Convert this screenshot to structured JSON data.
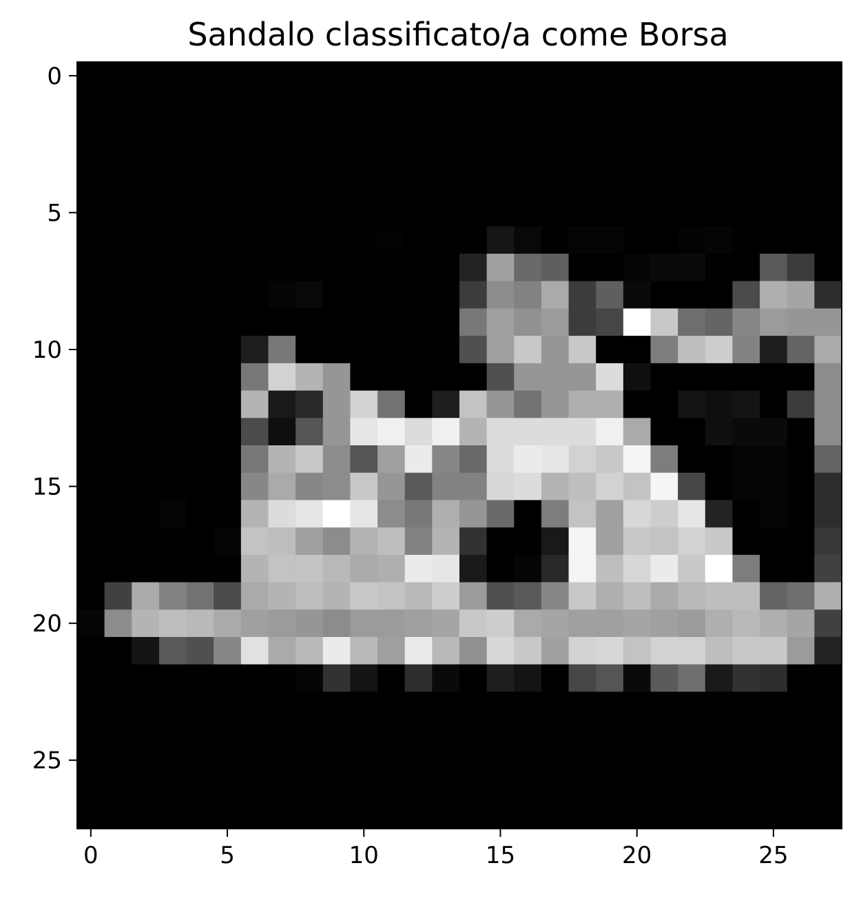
{
  "chart_data": {
    "type": "heatmap",
    "title": "Sandalo classificato/a come Borsa",
    "xlabel": "",
    "ylabel": "",
    "colormap": "gray",
    "x_ticks": [
      "0",
      "5",
      "10",
      "15",
      "20",
      "25"
    ],
    "y_ticks": [
      "0",
      "5",
      "10",
      "15",
      "20",
      "25"
    ],
    "xlim": [
      -0.5,
      27.5
    ],
    "ylim": [
      27.5,
      -0.5
    ],
    "grid": false,
    "rows": [
      [
        0,
        0,
        0,
        0,
        0,
        0,
        0,
        0,
        0,
        0,
        0,
        0,
        0,
        0,
        0,
        0,
        0,
        0,
        0,
        0,
        0,
        0,
        0,
        0,
        0,
        0,
        0,
        0
      ],
      [
        0,
        0,
        0,
        0,
        0,
        0,
        0,
        0,
        0,
        0,
        0,
        0,
        0,
        0,
        0,
        0,
        0,
        0,
        0,
        0,
        0,
        0,
        0,
        0,
        0,
        0,
        0,
        0
      ],
      [
        0,
        0,
        0,
        0,
        0,
        0,
        0,
        0,
        0,
        0,
        0,
        0,
        0,
        0,
        0,
        0,
        0,
        0,
        0,
        0,
        0,
        0,
        0,
        0,
        0,
        0,
        0,
        0
      ],
      [
        0,
        0,
        0,
        0,
        0,
        0,
        0,
        0,
        0,
        0,
        0,
        0,
        0,
        0,
        0,
        0,
        0,
        0,
        0,
        0,
        0,
        0,
        0,
        0,
        0,
        0,
        0,
        0
      ],
      [
        0,
        0,
        0,
        0,
        0,
        0,
        0,
        0,
        0,
        0,
        0,
        0,
        0,
        0,
        0,
        0,
        0,
        0,
        0,
        0,
        0,
        0,
        0,
        0,
        0,
        0,
        0,
        0
      ],
      [
        0,
        0,
        0,
        0,
        0,
        0,
        0,
        0,
        0,
        0,
        0,
        0,
        0,
        0,
        0,
        0,
        0,
        0,
        0,
        0,
        0,
        0,
        0,
        0,
        0,
        0,
        0,
        0
      ],
      [
        0,
        0,
        0,
        0,
        0,
        0,
        0,
        0,
        0,
        0,
        0,
        2,
        0,
        0,
        0,
        22,
        8,
        0,
        5,
        5,
        0,
        0,
        3,
        5,
        0,
        0,
        0,
        0
      ],
      [
        0,
        0,
        0,
        0,
        0,
        0,
        0,
        0,
        0,
        0,
        0,
        0,
        0,
        0,
        35,
        160,
        105,
        95,
        0,
        0,
        5,
        10,
        10,
        0,
        0,
        90,
        60,
        0
      ],
      [
        0,
        0,
        0,
        0,
        0,
        0,
        0,
        5,
        8,
        0,
        0,
        0,
        0,
        0,
        60,
        140,
        130,
        170,
        60,
        95,
        10,
        0,
        0,
        0,
        75,
        175,
        165,
        45
      ],
      [
        0,
        0,
        0,
        0,
        0,
        0,
        0,
        0,
        0,
        0,
        0,
        0,
        0,
        0,
        120,
        160,
        145,
        155,
        60,
        70,
        255,
        200,
        110,
        100,
        135,
        155,
        150,
        150
      ],
      [
        0,
        0,
        0,
        0,
        0,
        0,
        30,
        120,
        0,
        0,
        0,
        0,
        0,
        0,
        80,
        160,
        200,
        150,
        200,
        0,
        0,
        125,
        190,
        205,
        130,
        30,
        100,
        170
      ],
      [
        0,
        0,
        0,
        0,
        0,
        0,
        120,
        210,
        180,
        150,
        0,
        0,
        0,
        0,
        0,
        80,
        150,
        150,
        150,
        220,
        15,
        0,
        0,
        0,
        0,
        0,
        0,
        140
      ],
      [
        0,
        0,
        0,
        0,
        0,
        0,
        180,
        25,
        40,
        150,
        210,
        115,
        0,
        30,
        195,
        150,
        115,
        150,
        175,
        175,
        0,
        0,
        20,
        15,
        20,
        0,
        60,
        140
      ],
      [
        0,
        0,
        0,
        0,
        0,
        0,
        75,
        15,
        85,
        150,
        230,
        240,
        220,
        240,
        180,
        220,
        220,
        220,
        220,
        240,
        170,
        0,
        0,
        15,
        10,
        10,
        0,
        140
      ],
      [
        0,
        0,
        0,
        0,
        0,
        0,
        120,
        180,
        200,
        140,
        85,
        160,
        235,
        135,
        105,
        220,
        235,
        230,
        210,
        200,
        245,
        125,
        0,
        0,
        5,
        5,
        0,
        100
      ],
      [
        0,
        0,
        0,
        0,
        0,
        0,
        135,
        170,
        135,
        140,
        200,
        150,
        90,
        130,
        130,
        215,
        220,
        180,
        190,
        210,
        195,
        245,
        70,
        0,
        5,
        5,
        0,
        45
      ],
      [
        0,
        0,
        0,
        5,
        0,
        0,
        180,
        220,
        230,
        255,
        230,
        140,
        120,
        175,
        150,
        105,
        0,
        125,
        195,
        160,
        215,
        205,
        230,
        35,
        0,
        5,
        0,
        45
      ],
      [
        0,
        0,
        0,
        0,
        0,
        5,
        195,
        190,
        160,
        140,
        180,
        190,
        130,
        180,
        50,
        0,
        0,
        25,
        245,
        160,
        200,
        195,
        210,
        200,
        0,
        0,
        0,
        55
      ],
      [
        0,
        0,
        0,
        0,
        0,
        0,
        180,
        195,
        195,
        185,
        170,
        175,
        235,
        230,
        25,
        0,
        5,
        40,
        245,
        190,
        215,
        235,
        200,
        255,
        125,
        0,
        0,
        65
      ],
      [
        0,
        65,
        170,
        130,
        115,
        75,
        170,
        180,
        190,
        180,
        200,
        195,
        185,
        205,
        155,
        80,
        90,
        135,
        200,
        175,
        190,
        170,
        185,
        190,
        190,
        100,
        110,
        175
      ],
      [
        5,
        140,
        180,
        190,
        185,
        170,
        160,
        155,
        150,
        140,
        155,
        155,
        160,
        165,
        200,
        205,
        170,
        165,
        160,
        160,
        165,
        160,
        155,
        175,
        185,
        175,
        165,
        65
      ],
      [
        0,
        0,
        20,
        90,
        80,
        135,
        225,
        170,
        185,
        235,
        185,
        160,
        235,
        185,
        145,
        215,
        200,
        160,
        210,
        215,
        195,
        210,
        210,
        190,
        200,
        200,
        155,
        35
      ],
      [
        0,
        0,
        0,
        0,
        0,
        0,
        0,
        0,
        5,
        50,
        20,
        0,
        45,
        10,
        0,
        30,
        20,
        0,
        70,
        85,
        10,
        90,
        110,
        25,
        50,
        45,
        0,
        0
      ],
      [
        0,
        0,
        0,
        0,
        0,
        0,
        0,
        0,
        0,
        0,
        0,
        0,
        0,
        0,
        0,
        0,
        0,
        0,
        0,
        0,
        0,
        0,
        0,
        0,
        0,
        0,
        0,
        0
      ],
      [
        0,
        0,
        0,
        0,
        0,
        0,
        0,
        0,
        0,
        0,
        0,
        0,
        0,
        0,
        0,
        0,
        0,
        0,
        0,
        0,
        0,
        0,
        0,
        0,
        0,
        0,
        0,
        0
      ],
      [
        0,
        0,
        0,
        0,
        0,
        0,
        0,
        0,
        0,
        0,
        0,
        0,
        0,
        0,
        0,
        0,
        0,
        0,
        0,
        0,
        0,
        0,
        0,
        0,
        0,
        0,
        0,
        0
      ],
      [
        0,
        0,
        0,
        0,
        0,
        0,
        0,
        0,
        0,
        0,
        0,
        0,
        0,
        0,
        0,
        0,
        0,
        0,
        0,
        0,
        0,
        0,
        0,
        0,
        0,
        0,
        0,
        0
      ],
      [
        0,
        0,
        0,
        0,
        0,
        0,
        0,
        0,
        0,
        0,
        0,
        0,
        0,
        0,
        0,
        0,
        0,
        0,
        0,
        0,
        0,
        0,
        0,
        0,
        0,
        0,
        0,
        0
      ]
    ]
  }
}
